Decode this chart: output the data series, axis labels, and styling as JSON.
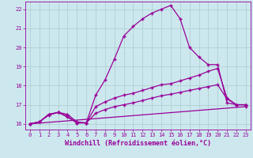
{
  "xlabel": "Windchill (Refroidissement éolien,°C)",
  "bg_color": "#cce8ee",
  "grid_color": "#aacccc",
  "line_color": "#990099",
  "xlim": [
    -0.5,
    23.5
  ],
  "ylim": [
    15.7,
    22.4
  ],
  "xticks": [
    0,
    1,
    2,
    3,
    4,
    5,
    6,
    7,
    8,
    9,
    10,
    11,
    12,
    13,
    14,
    15,
    16,
    17,
    18,
    19,
    20,
    21,
    22,
    23
  ],
  "yticks": [
    16,
    17,
    18,
    19,
    20,
    21,
    22
  ],
  "line1_x": [
    0,
    1,
    2,
    3,
    4,
    5,
    6,
    7,
    8,
    9,
    10,
    11,
    12,
    13,
    14,
    15,
    16,
    17,
    18,
    19,
    20,
    21,
    22,
    23
  ],
  "line1_y": [
    16.0,
    16.1,
    16.5,
    16.6,
    16.5,
    16.1,
    16.05,
    17.5,
    18.3,
    19.4,
    20.6,
    21.1,
    21.5,
    21.8,
    22.0,
    22.2,
    21.5,
    20.0,
    19.5,
    19.1,
    19.1,
    17.1,
    17.0,
    17.0
  ],
  "line2_x": [
    0,
    1,
    2,
    3,
    4,
    5,
    6,
    7,
    8,
    9,
    10,
    11,
    12,
    13,
    14,
    15,
    16,
    17,
    18,
    19,
    20,
    21,
    22,
    23
  ],
  "line2_y": [
    16.0,
    16.1,
    16.5,
    16.6,
    16.4,
    16.05,
    16.05,
    16.9,
    17.15,
    17.35,
    17.5,
    17.6,
    17.75,
    17.9,
    18.05,
    18.1,
    18.25,
    18.4,
    18.55,
    18.75,
    18.9,
    17.35,
    17.0,
    17.0
  ],
  "line3_x": [
    0,
    1,
    2,
    3,
    4,
    5,
    6,
    7,
    8,
    9,
    10,
    11,
    12,
    13,
    14,
    15,
    16,
    17,
    18,
    19,
    20,
    21,
    22,
    23
  ],
  "line3_y": [
    16.0,
    16.1,
    16.45,
    16.6,
    16.35,
    16.05,
    16.05,
    16.55,
    16.75,
    16.9,
    17.0,
    17.1,
    17.22,
    17.35,
    17.47,
    17.55,
    17.65,
    17.75,
    17.85,
    17.95,
    18.05,
    17.3,
    17.0,
    17.0
  ],
  "line4_x": [
    0,
    23
  ],
  "line4_y": [
    16.0,
    16.9
  ],
  "marker": "+",
  "markersize": 2.5,
  "linewidth": 0.9,
  "tick_fontsize": 5.0,
  "xlabel_fontsize": 6.0
}
